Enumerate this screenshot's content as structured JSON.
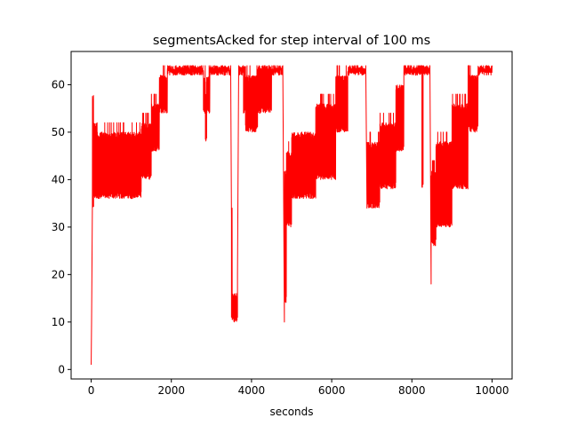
{
  "chart_data": {
    "type": "line",
    "title": "segmentsAcked for step interval of 100 ms",
    "xlabel": "seconds",
    "ylabel": "",
    "xlim": [
      -500,
      10500
    ],
    "ylim": [
      -2,
      67
    ],
    "x_ticks": [
      0,
      2000,
      4000,
      6000,
      8000,
      10000
    ],
    "y_ticks": [
      0,
      10,
      20,
      30,
      40,
      50,
      60
    ],
    "grid": false,
    "legend": "none",
    "series": [
      {
        "color": "#ff0000",
        "segments": [
          {
            "x0": 0,
            "x1": 10,
            "mode": "line",
            "a": 1,
            "b": 10
          },
          {
            "x0": 10,
            "x1": 30,
            "mode": "line",
            "a": 10,
            "b": 34
          },
          {
            "x0": 30,
            "x1": 60,
            "mode": "osc",
            "a": 34,
            "b": 58,
            "sb": 58
          },
          {
            "x0": 60,
            "x1": 150,
            "mode": "osc",
            "a": 36,
            "b": 52,
            "sb": 52
          },
          {
            "x0": 150,
            "x1": 1250,
            "mode": "osc",
            "a": 36,
            "b": 50,
            "sb": 52
          },
          {
            "x0": 1250,
            "x1": 1500,
            "mode": "osc",
            "a": 40,
            "b": 52,
            "sb": 54
          },
          {
            "x0": 1500,
            "x1": 1700,
            "mode": "osc",
            "a": 46,
            "b": 56,
            "sb": 58
          },
          {
            "x0": 1700,
            "x1": 1900,
            "mode": "osc",
            "a": 54,
            "b": 62,
            "sb": 64
          },
          {
            "x0": 1900,
            "x1": 2800,
            "mode": "osc",
            "a": 62,
            "b": 64,
            "sb": 64
          },
          {
            "x0": 2800,
            "x1": 2850,
            "mode": "osc",
            "a": 54,
            "b": 62,
            "sb": 64
          },
          {
            "x0": 2850,
            "x1": 2880,
            "mode": "osc",
            "a": 48,
            "b": 58,
            "sb": 60
          },
          {
            "x0": 2880,
            "x1": 2960,
            "mode": "osc",
            "a": 54,
            "b": 62,
            "sb": 64
          },
          {
            "x0": 2960,
            "x1": 3480,
            "mode": "osc",
            "a": 62,
            "b": 64,
            "sb": 64
          },
          {
            "x0": 3480,
            "x1": 3500,
            "mode": "line",
            "a": 64,
            "b": 32
          },
          {
            "x0": 3500,
            "x1": 3530,
            "mode": "osc",
            "a": 10,
            "b": 16,
            "sb": 34
          },
          {
            "x0": 3530,
            "x1": 3650,
            "mode": "osc",
            "a": 10,
            "b": 16,
            "sb": 16
          },
          {
            "x0": 3650,
            "x1": 3680,
            "mode": "line",
            "a": 20,
            "b": 64
          },
          {
            "x0": 3680,
            "x1": 3800,
            "mode": "osc",
            "a": 62,
            "b": 64,
            "sb": 64
          },
          {
            "x0": 3800,
            "x1": 3850,
            "mode": "osc",
            "a": 54,
            "b": 64,
            "sb": 64
          },
          {
            "x0": 3850,
            "x1": 4150,
            "mode": "osc",
            "a": 50,
            "b": 62,
            "sb": 64
          },
          {
            "x0": 4150,
            "x1": 4500,
            "mode": "osc",
            "a": 54,
            "b": 64,
            "sb": 64
          },
          {
            "x0": 4500,
            "x1": 4780,
            "mode": "osc",
            "a": 62,
            "b": 64,
            "sb": 64
          },
          {
            "x0": 4780,
            "x1": 4820,
            "mode": "line",
            "a": 64,
            "b": 10
          },
          {
            "x0": 4820,
            "x1": 4870,
            "mode": "osc",
            "a": 14,
            "b": 42,
            "sb": 44
          },
          {
            "x0": 4870,
            "x1": 5000,
            "mode": "osc",
            "a": 30,
            "b": 46,
            "sb": 48
          },
          {
            "x0": 5000,
            "x1": 5600,
            "mode": "osc",
            "a": 36,
            "b": 50,
            "sb": 50
          },
          {
            "x0": 5600,
            "x1": 6100,
            "mode": "osc",
            "a": 40,
            "b": 56,
            "sb": 58
          },
          {
            "x0": 6100,
            "x1": 6400,
            "mode": "osc",
            "a": 50,
            "b": 62,
            "sb": 64
          },
          {
            "x0": 6400,
            "x1": 6850,
            "mode": "osc",
            "a": 62,
            "b": 64,
            "sb": 64
          },
          {
            "x0": 6850,
            "x1": 6880,
            "mode": "line",
            "a": 64,
            "b": 34
          },
          {
            "x0": 6880,
            "x1": 7200,
            "mode": "osc",
            "a": 34,
            "b": 48,
            "sb": 50
          },
          {
            "x0": 7200,
            "x1": 7600,
            "mode": "osc",
            "a": 38,
            "b": 52,
            "sb": 54
          },
          {
            "x0": 7600,
            "x1": 7800,
            "mode": "osc",
            "a": 46,
            "b": 60,
            "sb": 62
          },
          {
            "x0": 7800,
            "x1": 8250,
            "mode": "osc",
            "a": 62,
            "b": 64,
            "sb": 64
          },
          {
            "x0": 8250,
            "x1": 8280,
            "mode": "osc",
            "a": 38,
            "b": 64,
            "sb": 64
          },
          {
            "x0": 8280,
            "x1": 8450,
            "mode": "osc",
            "a": 62,
            "b": 64,
            "sb": 64
          },
          {
            "x0": 8450,
            "x1": 8480,
            "mode": "line",
            "a": 64,
            "b": 18
          },
          {
            "x0": 8480,
            "x1": 8600,
            "mode": "osc",
            "a": 26,
            "b": 42,
            "sb": 44
          },
          {
            "x0": 8600,
            "x1": 9000,
            "mode": "osc",
            "a": 30,
            "b": 48,
            "sb": 50
          },
          {
            "x0": 9000,
            "x1": 9400,
            "mode": "osc",
            "a": 38,
            "b": 56,
            "sb": 58
          },
          {
            "x0": 9400,
            "x1": 9650,
            "mode": "osc",
            "a": 50,
            "b": 62,
            "sb": 64
          },
          {
            "x0": 9650,
            "x1": 10000,
            "mode": "osc",
            "a": 62,
            "b": 64,
            "sb": 64
          }
        ]
      }
    ]
  }
}
